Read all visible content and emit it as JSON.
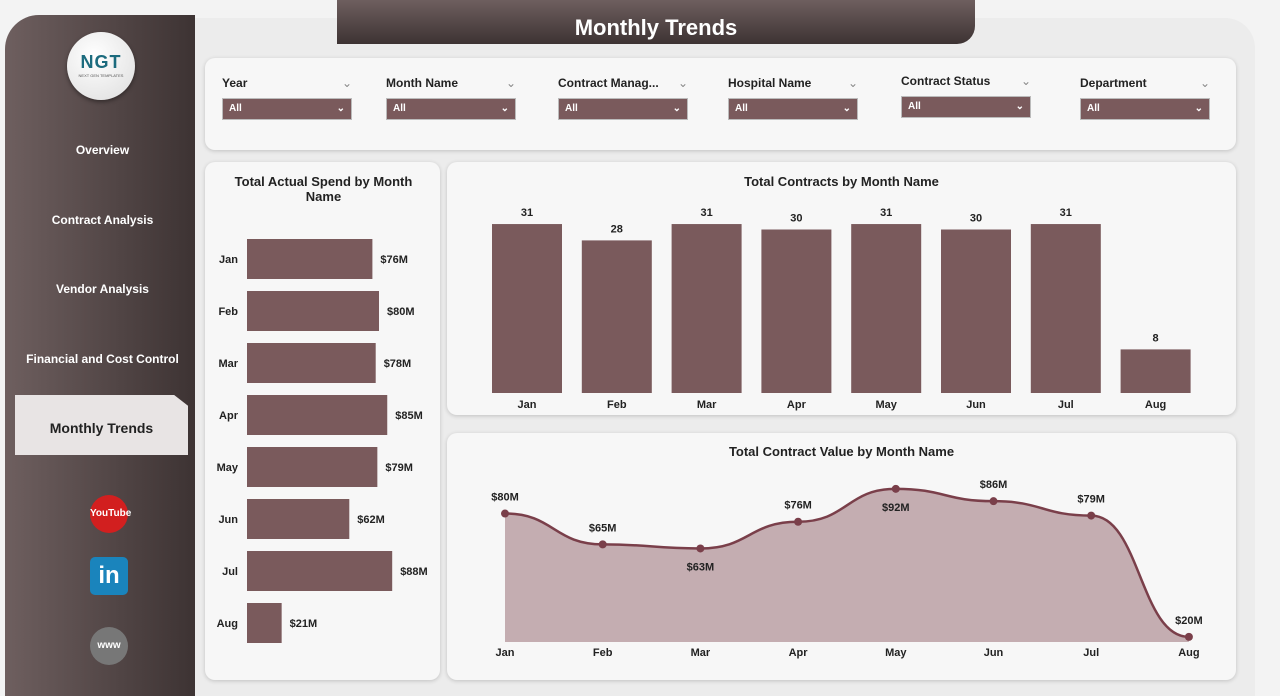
{
  "title": "Monthly Trends",
  "logo": {
    "text": "NGT",
    "sub": "NEXT GEN TEMPLATES"
  },
  "nav": [
    {
      "label": "Overview"
    },
    {
      "label": "Contract Analysis"
    },
    {
      "label": "Vendor Analysis"
    },
    {
      "label": "Financial and Cost Control"
    },
    {
      "label": "Monthly Trends",
      "active": true
    }
  ],
  "social": [
    {
      "icon": "youtube-icon",
      "label": "YouTube",
      "color": "#d21f1f"
    },
    {
      "icon": "linkedin-icon",
      "label": "in",
      "color": "#1a84bc"
    },
    {
      "icon": "globe-icon",
      "label": "www",
      "color": "#777777"
    }
  ],
  "filters": [
    {
      "label": "Year",
      "value": "All"
    },
    {
      "label": "Month Name",
      "value": "All"
    },
    {
      "label": "Contract Manag...",
      "value": "All"
    },
    {
      "label": "Hospital Name",
      "value": "All"
    },
    {
      "label": "Contract Status",
      "value": "All"
    },
    {
      "label": "Department",
      "value": "All"
    }
  ],
  "colors": {
    "bar": "#7a5a5c",
    "area": "#c4adb1",
    "line": "#7a3f4a"
  },
  "chart_data": [
    {
      "type": "bar",
      "orientation": "horizontal",
      "title": "Total Actual Spend by Month Name",
      "categories": [
        "Jan",
        "Feb",
        "Mar",
        "Apr",
        "May",
        "Jun",
        "Jul",
        "Aug"
      ],
      "values": [
        76,
        80,
        78,
        85,
        79,
        62,
        88,
        21
      ],
      "labels": [
        "$76M",
        "$80M",
        "$78M",
        "$85M",
        "$79M",
        "$62M",
        "$88M",
        "$21M"
      ]
    },
    {
      "type": "bar",
      "title": "Total Contracts by Month Name",
      "categories": [
        "Jan",
        "Feb",
        "Mar",
        "Apr",
        "May",
        "Jun",
        "Jul",
        "Aug"
      ],
      "values": [
        31,
        28,
        31,
        30,
        31,
        30,
        31,
        8
      ]
    },
    {
      "type": "area",
      "title": "Total Contract Value by Month Name",
      "categories": [
        "Jan",
        "Feb",
        "Mar",
        "Apr",
        "May",
        "Jun",
        "Jul",
        "Aug"
      ],
      "values": [
        80,
        65,
        63,
        76,
        92,
        86,
        79,
        20
      ],
      "labels": [
        "$80M",
        "$65M",
        "$63M",
        "$76M",
        "$92M",
        "$86M",
        "$79M",
        "$20M"
      ]
    }
  ]
}
